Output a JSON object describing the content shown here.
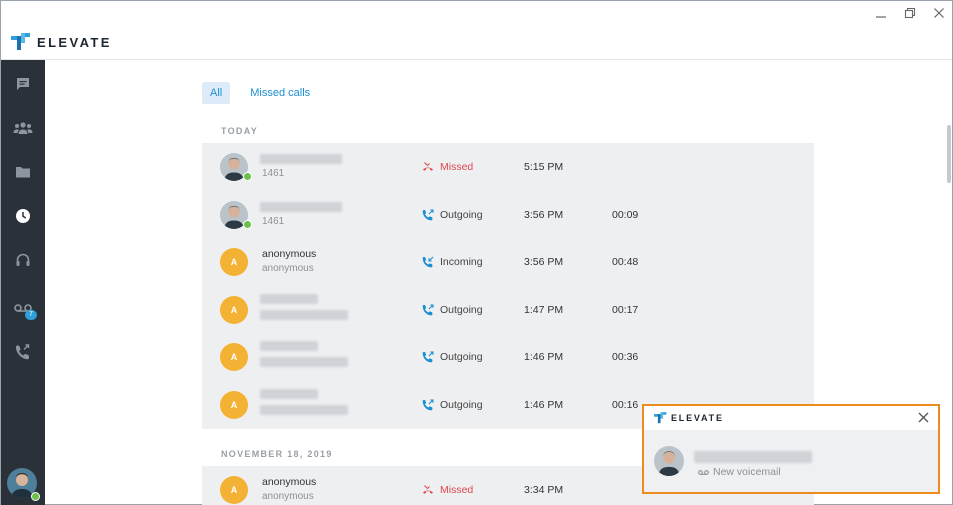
{
  "app": {
    "name": "ELEVATE"
  },
  "tabs": [
    {
      "label": "All",
      "active": true
    },
    {
      "label": "Missed calls",
      "active": false
    }
  ],
  "sidebar": {
    "items": [
      {
        "icon": "chat-icon"
      },
      {
        "icon": "contacts-icon"
      },
      {
        "icon": "folder-icon"
      },
      {
        "icon": "clock-icon"
      },
      {
        "icon": "headset-icon"
      },
      {
        "icon": "voicemail-icon",
        "badge": "7"
      },
      {
        "icon": "call-forward-icon"
      }
    ]
  },
  "sections": [
    {
      "label": "TODAY",
      "calls": [
        {
          "avatar_type": "photo",
          "name": "",
          "sub": "1461",
          "status": "Missed",
          "time": "5:15 PM",
          "duration": ""
        },
        {
          "avatar_type": "photo",
          "name": "",
          "sub": "1461",
          "status": "Outgoing",
          "time": "3:56 PM",
          "duration": "00:09"
        },
        {
          "avatar_type": "letter",
          "avatar_letter": "A",
          "name": "anonymous",
          "sub": "anonymous",
          "status": "Incoming",
          "time": "3:56 PM",
          "duration": "00:48"
        },
        {
          "avatar_type": "letter",
          "avatar_letter": "A",
          "name": "",
          "sub": "",
          "status": "Outgoing",
          "time": "1:47 PM",
          "duration": "00:17"
        },
        {
          "avatar_type": "letter",
          "avatar_letter": "A",
          "name": "",
          "sub": "",
          "status": "Outgoing",
          "time": "1:46 PM",
          "duration": "00:36"
        },
        {
          "avatar_type": "letter",
          "avatar_letter": "A",
          "name": "",
          "sub": "",
          "status": "Outgoing",
          "time": "1:46 PM",
          "duration": "00:16"
        }
      ]
    },
    {
      "label": "NOVEMBER 18, 2019",
      "calls": [
        {
          "avatar_type": "letter",
          "avatar_letter": "A",
          "name": "anonymous",
          "sub": "anonymous",
          "status": "Missed",
          "time": "3:34 PM",
          "duration": ""
        }
      ]
    }
  ],
  "notification": {
    "app": "ELEVATE",
    "subtitle": "New voicemail"
  },
  "colors": {
    "accent": "#1a8fd0",
    "missed": "#e0484d",
    "presence": "#6cc04a",
    "avatar": "#f3b233",
    "toast_border": "#ef8a1f",
    "sidebar": "#2a3139"
  }
}
